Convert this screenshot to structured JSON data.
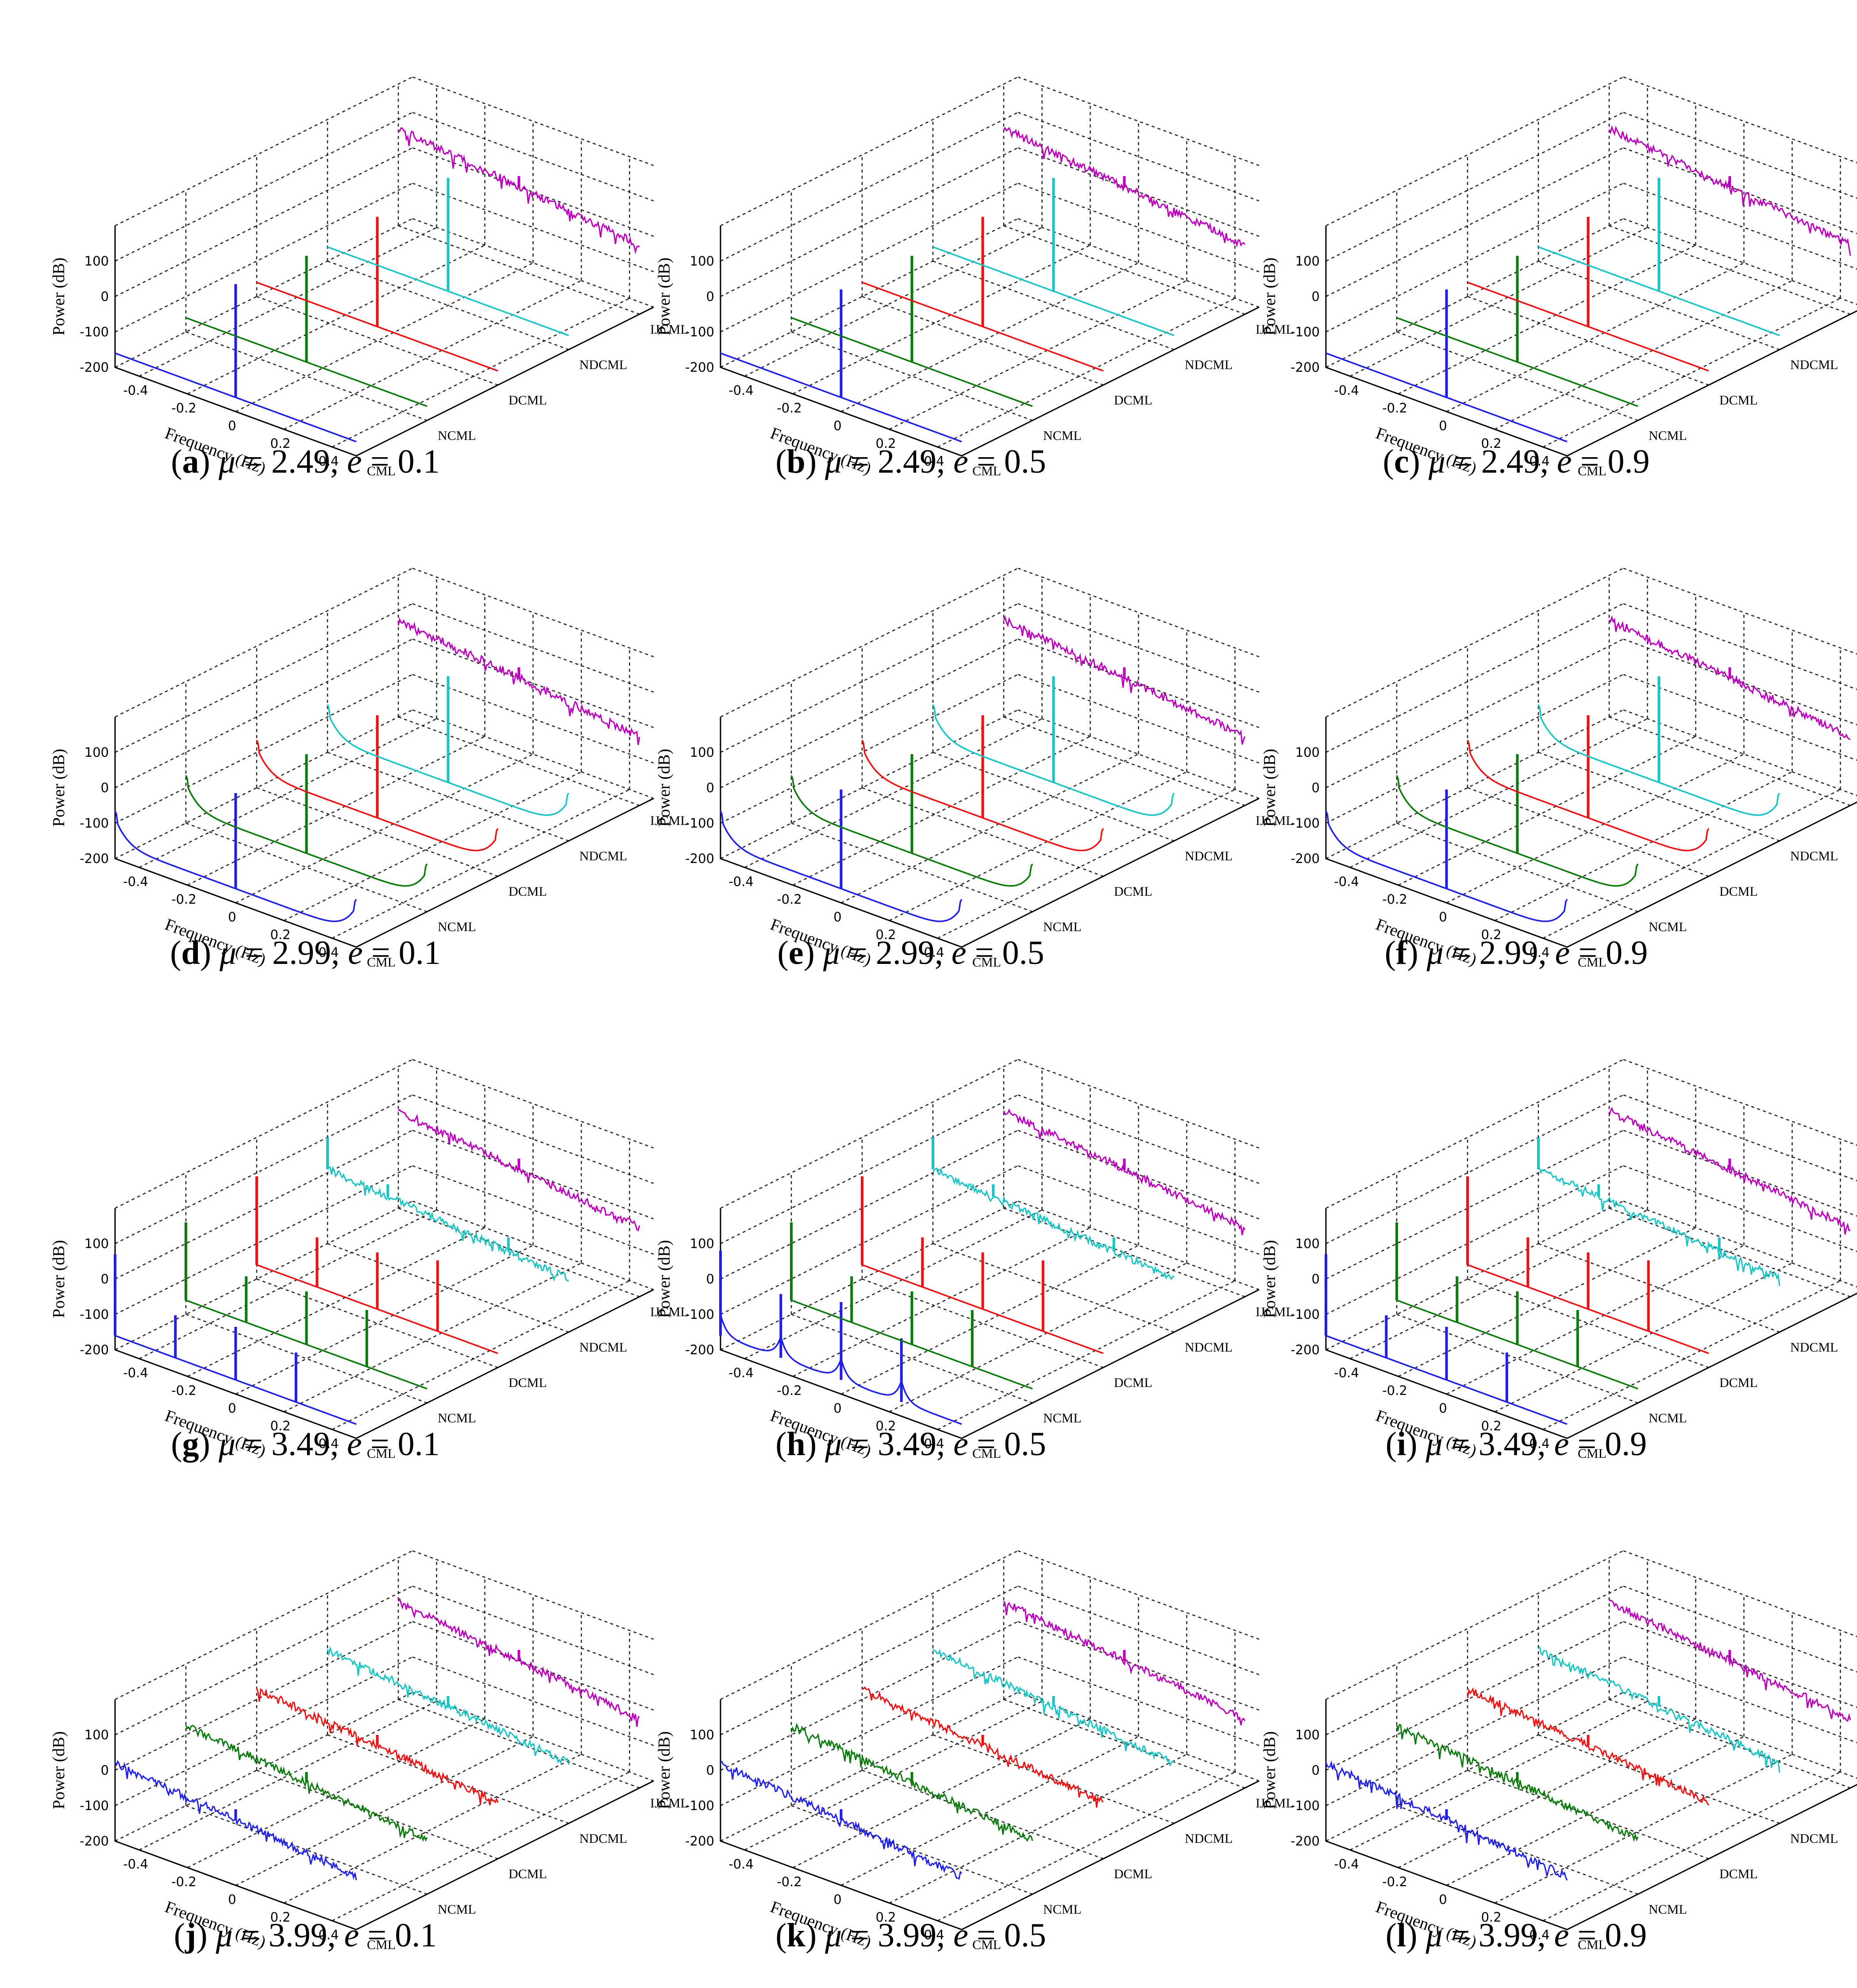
{
  "figure": {
    "panels": [
      {
        "label": "a",
        "mu": "2.49",
        "e": "0.1"
      },
      {
        "label": "b",
        "mu": "2.49",
        "e": "0.5"
      },
      {
        "label": "c",
        "mu": "2.49",
        "e": "0.9"
      },
      {
        "label": "d",
        "mu": "2.99",
        "e": "0.1"
      },
      {
        "label": "e",
        "mu": "2.99",
        "e": "0.5"
      },
      {
        "label": "f",
        "mu": "2.99",
        "e": "0.9"
      },
      {
        "label": "g",
        "mu": "3.49",
        "e": "0.1"
      },
      {
        "label": "h",
        "mu": "3.49",
        "e": "0.5"
      },
      {
        "label": "i",
        "mu": "3.49",
        "e": "0.9"
      },
      {
        "label": "j",
        "mu": "3.99",
        "e": "0.1"
      },
      {
        "label": "k",
        "mu": "3.99",
        "e": "0.5"
      },
      {
        "label": "l",
        "mu": "3.99",
        "e": "0.9"
      }
    ],
    "caption_mu_symbol": "μ",
    "caption_e_symbol": "e",
    "caption_equals": "=",
    "caption_sep": ","
  },
  "chart_data": {
    "type": "line",
    "subtype": "3d-waterfall power spectrum",
    "xlabel": "Frequency (Hz)",
    "zlabel": "Power (dB)",
    "xticks": [
      -0.4,
      -0.2,
      0,
      0.2,
      0.4
    ],
    "zticks": [
      100,
      0,
      -100,
      -200
    ],
    "xlim": [
      -0.5,
      0.5
    ],
    "zlim": [
      -200,
      200
    ],
    "series_names": [
      "CML",
      "NCML",
      "DCML",
      "NDCML",
      "IJCML"
    ],
    "series_colors": [
      "#1f1fe6",
      "#0a7a0a",
      "#ee1111",
      "#18c4c4",
      "#bb00bb"
    ],
    "grid": true,
    "panels": [
      {
        "mu": 2.49,
        "e": 0.1,
        "series": [
          {
            "name": "CML",
            "shape": "flat",
            "level": -160,
            "spikes": [
              [
                0,
                320
              ]
            ]
          },
          {
            "name": "NCML",
            "shape": "flat",
            "level": -160,
            "spikes": [
              [
                0,
                300
              ]
            ]
          },
          {
            "name": "DCML",
            "shape": "flat",
            "level": -160,
            "spikes": [
              [
                0,
                310
              ]
            ]
          },
          {
            "name": "NDCML",
            "shape": "flat",
            "level": -160,
            "spikes": [
              [
                0,
                320
              ]
            ]
          },
          {
            "name": "IJCML",
            "shape": "noise",
            "level": 75,
            "slope": -80,
            "spikes": [
              [
                0,
                30
              ]
            ]
          }
        ]
      },
      {
        "mu": 2.49,
        "e": 0.5,
        "series": [
          {
            "name": "CML",
            "shape": "flat",
            "level": -160,
            "spikes": [
              [
                0,
                305
              ]
            ]
          },
          {
            "name": "NCML",
            "shape": "flat",
            "level": -160,
            "spikes": [
              [
                0,
                300
              ]
            ]
          },
          {
            "name": "DCML",
            "shape": "flat",
            "level": -160,
            "spikes": [
              [
                0,
                310
              ]
            ]
          },
          {
            "name": "NDCML",
            "shape": "flat",
            "level": -160,
            "spikes": [
              [
                0,
                320
              ]
            ]
          },
          {
            "name": "IJCML",
            "shape": "noise",
            "level": 75,
            "slope": -80,
            "spikes": [
              [
                0,
                30
              ]
            ]
          }
        ]
      },
      {
        "mu": 2.49,
        "e": 0.9,
        "series": [
          {
            "name": "CML",
            "shape": "flat",
            "level": -160,
            "spikes": [
              [
                0,
                305
              ]
            ]
          },
          {
            "name": "NCML",
            "shape": "flat",
            "level": -160,
            "spikes": [
              [
                0,
                300
              ]
            ]
          },
          {
            "name": "DCML",
            "shape": "flat",
            "level": -160,
            "spikes": [
              [
                0,
                310
              ]
            ]
          },
          {
            "name": "NDCML",
            "shape": "flat",
            "level": -160,
            "spikes": [
              [
                0,
                320
              ]
            ]
          },
          {
            "name": "IJCML",
            "shape": "noise",
            "level": 75,
            "slope": -80,
            "spikes": [
              [
                0,
                30
              ]
            ]
          }
        ]
      },
      {
        "mu": 2.99,
        "e": 0.1,
        "series": [
          {
            "name": "CML",
            "shape": "bowl",
            "level": -160,
            "spikes": [
              [
                0,
                270
              ]
            ]
          },
          {
            "name": "NCML",
            "shape": "bowl",
            "level": -160,
            "spikes": [
              [
                0,
                280
              ]
            ]
          },
          {
            "name": "DCML",
            "shape": "bowl",
            "level": -160,
            "spikes": [
              [
                0,
                290
              ]
            ]
          },
          {
            "name": "NDCML",
            "shape": "bowl",
            "level": -160,
            "spikes": [
              [
                0,
                300
              ]
            ]
          },
          {
            "name": "IJCML",
            "shape": "noise",
            "level": 75,
            "slope": -80,
            "spikes": [
              [
                0,
                30
              ]
            ]
          }
        ]
      },
      {
        "mu": 2.99,
        "e": 0.5,
        "series": [
          {
            "name": "CML",
            "shape": "bowl",
            "level": -160,
            "spikes": [
              [
                0,
                280
              ]
            ]
          },
          {
            "name": "NCML",
            "shape": "bowl",
            "level": -160,
            "spikes": [
              [
                0,
                280
              ]
            ]
          },
          {
            "name": "DCML",
            "shape": "bowl",
            "level": -160,
            "spikes": [
              [
                0,
                290
              ]
            ]
          },
          {
            "name": "NDCML",
            "shape": "bowl",
            "level": -160,
            "spikes": [
              [
                0,
                300
              ]
            ]
          },
          {
            "name": "IJCML",
            "shape": "noise",
            "level": 75,
            "slope": -80,
            "spikes": [
              [
                0,
                30
              ]
            ]
          }
        ]
      },
      {
        "mu": 2.99,
        "e": 0.9,
        "series": [
          {
            "name": "CML",
            "shape": "bowl",
            "level": -160,
            "spikes": [
              [
                0,
                280
              ]
            ]
          },
          {
            "name": "NCML",
            "shape": "bowl",
            "level": -160,
            "spikes": [
              [
                0,
                280
              ]
            ]
          },
          {
            "name": "DCML",
            "shape": "bowl",
            "level": -160,
            "spikes": [
              [
                0,
                290
              ]
            ]
          },
          {
            "name": "NDCML",
            "shape": "bowl",
            "level": -160,
            "spikes": [
              [
                0,
                300
              ]
            ]
          },
          {
            "name": "IJCML",
            "shape": "noise",
            "level": 75,
            "slope": -80,
            "spikes": [
              [
                0,
                30
              ]
            ]
          }
        ]
      },
      {
        "mu": 3.49,
        "e": 0.1,
        "series": [
          {
            "name": "CML",
            "shape": "flat",
            "level": -160,
            "spikes": [
              [
                -0.5,
                230
              ],
              [
                -0.25,
                120
              ],
              [
                0,
                150
              ],
              [
                0.25,
                140
              ]
            ]
          },
          {
            "name": "NCML",
            "shape": "flat",
            "level": -160,
            "spikes": [
              [
                -0.5,
                220
              ],
              [
                -0.25,
                130
              ],
              [
                0,
                150
              ],
              [
                0.25,
                160
              ]
            ]
          },
          {
            "name": "DCML",
            "shape": "flat",
            "level": -160,
            "spikes": [
              [
                -0.5,
                250
              ],
              [
                -0.25,
                140
              ],
              [
                0,
                160
              ],
              [
                0.25,
                200
              ]
            ]
          },
          {
            "name": "NDCML",
            "shape": "noise",
            "level": 10,
            "slope": -60,
            "spikes": [
              [
                -0.5,
                90
              ],
              [
                -0.25,
                35
              ],
              [
                0.25,
                40
              ]
            ]
          },
          {
            "name": "IJCML",
            "shape": "noise",
            "level": 75,
            "slope": -80,
            "spikes": [
              [
                0,
                30
              ]
            ]
          }
        ]
      },
      {
        "mu": 3.49,
        "e": 0.5,
        "series": [
          {
            "name": "CML",
            "shape": "peaky",
            "level": -160,
            "spikes": [
              [
                -0.5,
                240
              ],
              [
                -0.25,
                180
              ],
              [
                0,
                220
              ],
              [
                0.25,
                180
              ]
            ]
          },
          {
            "name": "NCML",
            "shape": "flat",
            "level": -160,
            "spikes": [
              [
                -0.5,
                220
              ],
              [
                -0.25,
                130
              ],
              [
                0,
                150
              ],
              [
                0.25,
                160
              ]
            ]
          },
          {
            "name": "DCML",
            "shape": "flat",
            "level": -160,
            "spikes": [
              [
                -0.5,
                250
              ],
              [
                -0.25,
                140
              ],
              [
                0,
                160
              ],
              [
                0.25,
                200
              ]
            ]
          },
          {
            "name": "NDCML",
            "shape": "noise",
            "level": 10,
            "slope": -60,
            "spikes": [
              [
                -0.5,
                90
              ],
              [
                -0.25,
                35
              ],
              [
                0.25,
                40
              ]
            ]
          },
          {
            "name": "IJCML",
            "shape": "noise",
            "level": 75,
            "slope": -80,
            "spikes": [
              [
                0,
                30
              ]
            ]
          }
        ]
      },
      {
        "mu": 3.49,
        "e": 0.9,
        "series": [
          {
            "name": "CML",
            "shape": "flat",
            "level": -160,
            "spikes": [
              [
                -0.5,
                230
              ],
              [
                -0.25,
                120
              ],
              [
                0,
                150
              ],
              [
                0.25,
                140
              ]
            ]
          },
          {
            "name": "NCML",
            "shape": "flat",
            "level": -160,
            "spikes": [
              [
                -0.5,
                220
              ],
              [
                -0.25,
                130
              ],
              [
                0,
                150
              ],
              [
                0.25,
                160
              ]
            ]
          },
          {
            "name": "DCML",
            "shape": "flat",
            "level": -160,
            "spikes": [
              [
                -0.5,
                250
              ],
              [
                -0.25,
                140
              ],
              [
                0,
                160
              ],
              [
                0.25,
                200
              ]
            ]
          },
          {
            "name": "NDCML",
            "shape": "noise",
            "level": 10,
            "slope": -60,
            "spikes": [
              [
                -0.5,
                90
              ],
              [
                -0.25,
                35
              ],
              [
                0.25,
                40
              ]
            ]
          },
          {
            "name": "IJCML",
            "shape": "noise",
            "level": 75,
            "slope": -80,
            "spikes": [
              [
                0,
                30
              ]
            ]
          }
        ]
      },
      {
        "mu": 3.99,
        "e": 0.1,
        "series": [
          {
            "name": "CML",
            "shape": "noise",
            "level": 20,
            "slope": -70,
            "spikes": [
              [
                0,
                30
              ]
            ]
          },
          {
            "name": "NCML",
            "shape": "noise",
            "level": 25,
            "slope": -70,
            "spikes": [
              [
                0,
                30
              ]
            ]
          },
          {
            "name": "DCML",
            "shape": "noise",
            "level": 30,
            "slope": -70,
            "spikes": [
              [
                0,
                30
              ]
            ]
          },
          {
            "name": "NDCML",
            "shape": "noise",
            "level": 40,
            "slope": -70,
            "spikes": [
              [
                0,
                30
              ]
            ]
          },
          {
            "name": "IJCML",
            "shape": "noise",
            "level": 75,
            "slope": -80,
            "spikes": [
              [
                0,
                30
              ]
            ]
          }
        ]
      },
      {
        "mu": 3.99,
        "e": 0.5,
        "series": [
          {
            "name": "CML",
            "shape": "noise",
            "level": 20,
            "slope": -70,
            "spikes": [
              [
                0,
                30
              ]
            ]
          },
          {
            "name": "NCML",
            "shape": "noise",
            "level": 25,
            "slope": -70,
            "spikes": [
              [
                0,
                30
              ]
            ]
          },
          {
            "name": "DCML",
            "shape": "noise",
            "level": 30,
            "slope": -70,
            "spikes": [
              [
                0,
                30
              ]
            ]
          },
          {
            "name": "NDCML",
            "shape": "noise",
            "level": 40,
            "slope": -70,
            "spikes": [
              [
                0,
                30
              ]
            ]
          },
          {
            "name": "IJCML",
            "shape": "noise",
            "level": 75,
            "slope": -80,
            "spikes": [
              [
                0,
                30
              ]
            ]
          }
        ]
      },
      {
        "mu": 3.99,
        "e": 0.9,
        "series": [
          {
            "name": "CML",
            "shape": "noise",
            "level": 20,
            "slope": -70,
            "spikes": [
              [
                0,
                30
              ]
            ]
          },
          {
            "name": "NCML",
            "shape": "noise",
            "level": 25,
            "slope": -70,
            "spikes": [
              [
                0,
                30
              ]
            ]
          },
          {
            "name": "DCML",
            "shape": "noise",
            "level": 30,
            "slope": -70,
            "spikes": [
              [
                0,
                30
              ]
            ]
          },
          {
            "name": "NDCML",
            "shape": "noise",
            "level": 40,
            "slope": -70,
            "spikes": [
              [
                0,
                30
              ]
            ]
          },
          {
            "name": "IJCML",
            "shape": "noise",
            "level": 75,
            "slope": -80,
            "spikes": [
              [
                0,
                30
              ]
            ]
          }
        ]
      }
    ]
  }
}
